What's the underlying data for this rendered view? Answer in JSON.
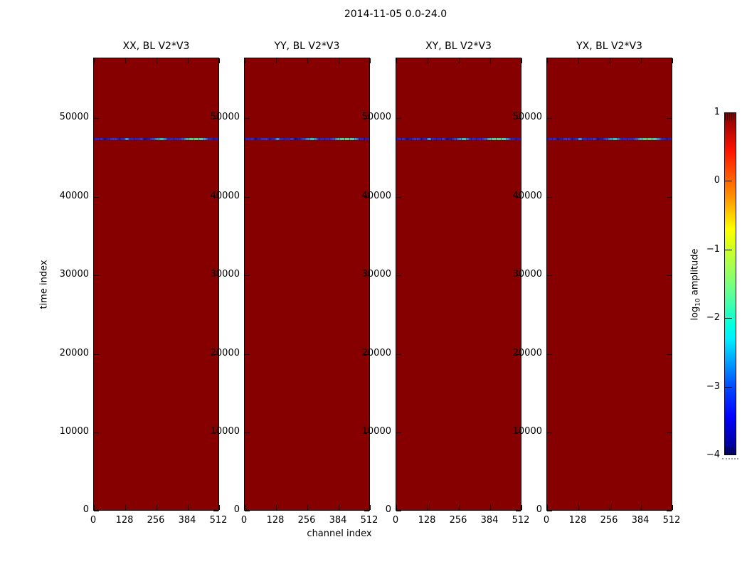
{
  "figure": {
    "background": "#ffffff"
  },
  "chart_data": {
    "type": "heatmap",
    "title": "2014-11-05 0.0-24.0",
    "xlabel": "channel index",
    "ylabel": "time index",
    "colormap": "jet",
    "legend_position": "colorbar-right",
    "grid": false,
    "panels": [
      {
        "title": "XX, BL V2*V3"
      },
      {
        "title": "YY, BL V2*V3"
      },
      {
        "title": "XY, BL V2*V3"
      },
      {
        "title": "YX, BL V2*V3"
      }
    ],
    "x": {
      "range": [
        0,
        512
      ],
      "ticks": [
        0,
        128,
        256,
        384,
        512
      ],
      "tick_labels": [
        "0",
        "128",
        "256",
        "384",
        "512"
      ]
    },
    "y": {
      "range": [
        0,
        57600
      ],
      "ticks": [
        0,
        10000,
        20000,
        30000,
        40000,
        50000
      ],
      "tick_labels": [
        "0",
        "10000",
        "20000",
        "30000",
        "40000",
        "50000"
      ]
    },
    "values": {
      "background_log10_amplitude": 1,
      "stripe_feature": {
        "time_index": 47300,
        "log10_amplitude_range": [
          -3,
          -1
        ],
        "description": "narrow horizontal low-amplitude stripe (blue/cyan/green speckle) spanning all channels, present in all four panels"
      }
    },
    "colorbar": {
      "label_prefix": "log",
      "label_sub": "10",
      "label_suffix": " amplitude",
      "vmin": -4,
      "vmax": 1,
      "ticks": [
        1,
        0,
        -1,
        -2,
        -3,
        -4
      ],
      "tick_labels": [
        "1",
        "0",
        "−1",
        "−2",
        "−3",
        "−4"
      ]
    },
    "colors": {
      "panel_fill": "#870000",
      "stripe_base": "#2525cc",
      "stripe_cyan": "#27c7cf",
      "stripe_green": "#4fd07a",
      "axis": "#000000"
    }
  }
}
